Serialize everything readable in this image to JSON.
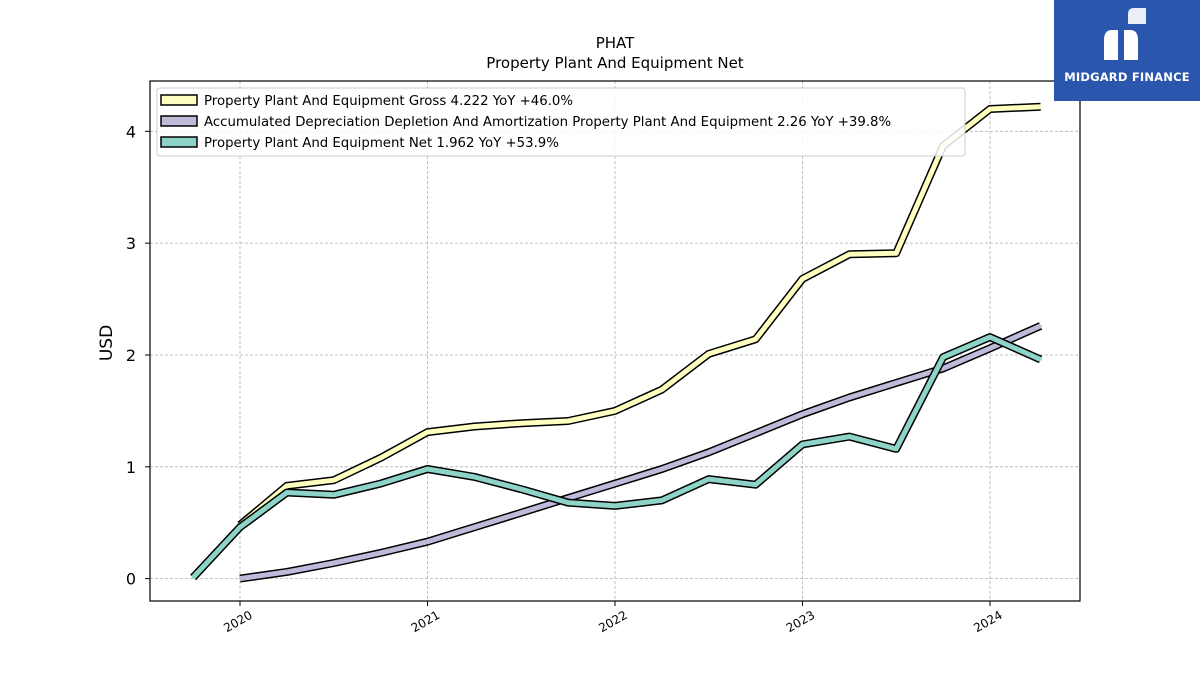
{
  "chart_data": {
    "type": "line",
    "title": "PHAT",
    "subtitle": "Property Plant And Equipment Net",
    "ylabel": "USD",
    "xlim": [
      2019.52,
      2024.48
    ],
    "ylim": [
      -0.2,
      4.45
    ],
    "x_ticks": [
      2020,
      2021,
      2022,
      2023,
      2024
    ],
    "y_ticks": [
      0,
      1,
      2,
      3,
      4
    ],
    "grid": true,
    "legend_position": "top-left",
    "series": [
      {
        "name": "Property Plant And Equipment Gross",
        "legend": "Property Plant And Equipment Gross  4.222 YoY +46.0%",
        "color": "#ffffbf",
        "x": [
          2020.0,
          2020.25,
          2020.5,
          2020.75,
          2021.0,
          2021.25,
          2021.5,
          2021.75,
          2022.0,
          2022.25,
          2022.5,
          2022.75,
          2023.0,
          2023.25,
          2023.5,
          2023.75,
          2024.0,
          2024.27
        ],
        "y": [
          0.48,
          0.83,
          0.88,
          1.08,
          1.31,
          1.36,
          1.39,
          1.41,
          1.5,
          1.69,
          2.01,
          2.14,
          2.68,
          2.9,
          2.91,
          3.87,
          4.2,
          4.22
        ]
      },
      {
        "name": "Accumulated Depreciation Depletion And Amortization Property Plant And Equipment",
        "legend": "Accumulated Depreciation Depletion And Amortization Property Plant And Equipment  2.26 YoY +39.8%",
        "color": "#bebada",
        "x": [
          2020.0,
          2020.25,
          2020.5,
          2020.75,
          2021.0,
          2021.25,
          2021.5,
          2021.75,
          2022.0,
          2022.25,
          2022.5,
          2022.75,
          2023.0,
          2023.25,
          2023.5,
          2023.75,
          2024.0,
          2024.27
        ],
        "y": [
          0.0,
          0.06,
          0.14,
          0.23,
          0.33,
          0.46,
          0.59,
          0.72,
          0.85,
          0.98,
          1.13,
          1.3,
          1.47,
          1.62,
          1.75,
          1.88,
          2.06,
          2.26
        ]
      },
      {
        "name": "Property Plant And Equipment Net",
        "legend": "Property Plant And Equipment Net  1.962 YoY +53.9%",
        "color": "#8dd3c7",
        "x": [
          2019.75,
          2020.0,
          2020.25,
          2020.5,
          2020.75,
          2021.0,
          2021.25,
          2021.5,
          2021.75,
          2022.0,
          2022.25,
          2022.5,
          2022.75,
          2023.0,
          2023.25,
          2023.5,
          2023.75,
          2024.0,
          2024.27
        ],
        "y": [
          0.01,
          0.46,
          0.77,
          0.75,
          0.85,
          0.98,
          0.91,
          0.8,
          0.68,
          0.65,
          0.7,
          0.89,
          0.84,
          1.2,
          1.27,
          1.16,
          1.98,
          2.16,
          1.96
        ]
      }
    ]
  },
  "brand": {
    "name": "MIDGARD FINANCE",
    "color": "#2b56ad"
  }
}
